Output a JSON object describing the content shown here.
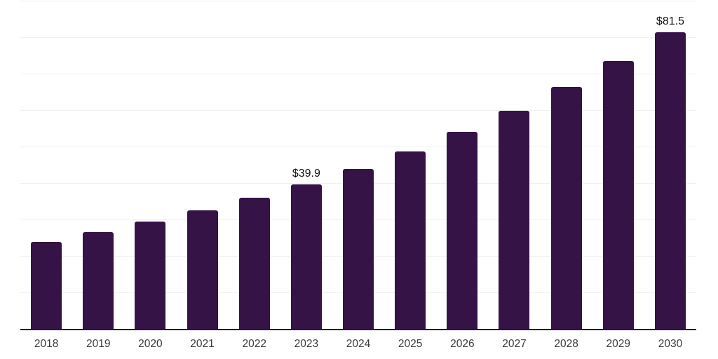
{
  "chart_data": {
    "type": "bar",
    "title": "",
    "xlabel": "",
    "ylabel": "",
    "categories": [
      "2018",
      "2019",
      "2020",
      "2021",
      "2022",
      "2023",
      "2024",
      "2025",
      "2026",
      "2027",
      "2028",
      "2029",
      "2030"
    ],
    "values": [
      24.1,
      26.7,
      29.6,
      32.7,
      36.2,
      39.9,
      44.0,
      48.9,
      54.2,
      60.0,
      66.6,
      73.6,
      81.5
    ],
    "data_labels": [
      {
        "category": "2023",
        "text": "$39.9"
      },
      {
        "category": "2030",
        "text": "$81.5"
      }
    ],
    "ylim": [
      0,
      90
    ],
    "gridline_step": 10,
    "grid": "horizontal",
    "y_tick_labels_shown": false,
    "legend_position": "none",
    "colors": {
      "bar": "#351347",
      "axis_line": "#202020",
      "gridline": "#f0f0f0",
      "data_label": "#111111",
      "tick_label": "#3a3a3a",
      "background": "#ffffff"
    }
  }
}
